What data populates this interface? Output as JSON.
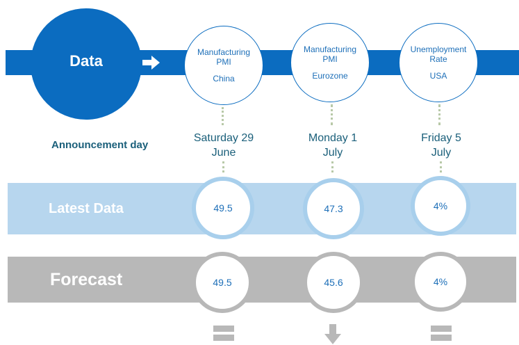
{
  "header": {
    "data_label": "Data"
  },
  "announcement_label": "Announcement day",
  "indicators": [
    {
      "line1": "Manufacturing",
      "line2": "PMI",
      "country": "China",
      "date_line1": "Saturday 29",
      "date_line2": "June",
      "latest": "49.5",
      "forecast": "49.5",
      "comparison_icon": "equals-icon"
    },
    {
      "line1": "Manufacturing",
      "line2": "PMI",
      "country": "Eurozone",
      "date_line1": "Monday 1",
      "date_line2": "July",
      "latest": "47.3",
      "forecast": "45.6",
      "comparison_icon": "arrow-down-icon"
    },
    {
      "line1": "Unemployment",
      "line2": "Rate",
      "country": "USA",
      "date_line1": "Friday 5",
      "date_line2": "July",
      "latest": "4%",
      "forecast": "4%",
      "comparison_icon": "equals-icon"
    }
  ],
  "rows": {
    "latest_label": "Latest Data",
    "forecast_label": "Forecast"
  },
  "colors": {
    "primary_blue": "#0b6cc0",
    "latest_band": "#b7d6ee",
    "forecast_band": "#b8b8b8",
    "text_teal": "#1a5f7a"
  }
}
